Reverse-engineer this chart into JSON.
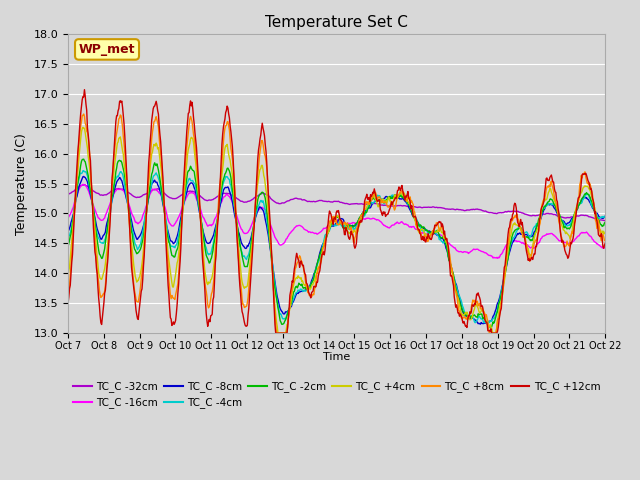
{
  "title": "Temperature Set C",
  "xlabel": "Time",
  "ylabel": "Temperature (C)",
  "ylim": [
    13.0,
    18.0
  ],
  "yticks": [
    13.0,
    13.5,
    14.0,
    14.5,
    15.0,
    15.5,
    16.0,
    16.5,
    17.0,
    17.5,
    18.0
  ],
  "background_color": "#d8d8d8",
  "plot_bg_color": "#d8d8d8",
  "grid_color": "#ffffff",
  "annotation_text": "WP_met",
  "annotation_color": "#8b0000",
  "annotation_bg": "#ffffaa",
  "series_order": [
    "TC_C -32cm",
    "TC_C -16cm",
    "TC_C -8cm",
    "TC_C -4cm",
    "TC_C -2cm",
    "TC_C +4cm",
    "TC_C +8cm",
    "TC_C +12cm"
  ],
  "colors": [
    "#aa00cc",
    "#ff00ff",
    "#0000cc",
    "#00cccc",
    "#00bb00",
    "#cccc00",
    "#ff8800",
    "#cc0000"
  ],
  "lw": 1.0,
  "figsize": [
    6.4,
    4.8
  ],
  "dpi": 100,
  "xtick_labels": [
    "Oct 7",
    "Oct 8",
    "Oct 9",
    "Oct 10",
    "Oct 11",
    "Oct 12",
    "Oct 13",
    "Oct 14",
    "Oct 15",
    "Oct 16",
    "Oct 17",
    "Oct 18",
    "Oct 19",
    "Oct 20",
    "Oct 21",
    "Oct 22"
  ],
  "legend_ncol": 6
}
